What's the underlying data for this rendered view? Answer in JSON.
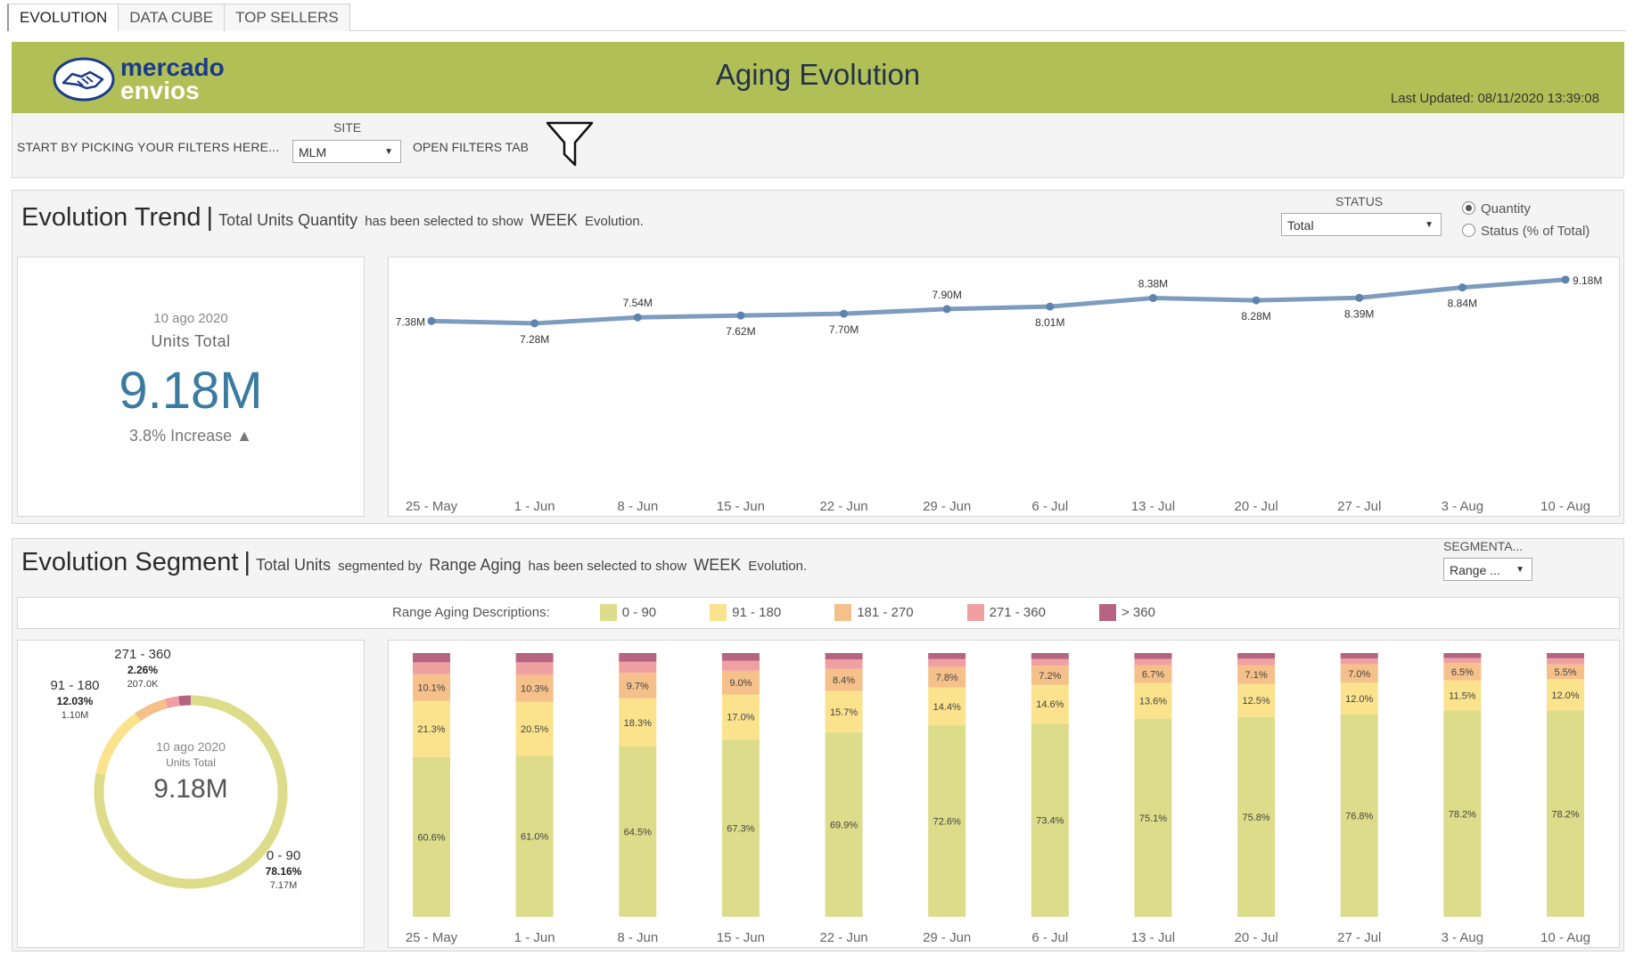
{
  "tabs": [
    {
      "label": "EVOLUTION",
      "active": true
    },
    {
      "label": "DATA CUBE",
      "active": false
    },
    {
      "label": "TOP SELLERS",
      "active": false
    }
  ],
  "header": {
    "logo_line1": "mercado",
    "logo_line2": "envios",
    "title": "Aging Evolution",
    "last_updated_label": "Last Updated:",
    "last_updated_value": "08/11/2020 13:39:08",
    "color": "#b1c056"
  },
  "filters": {
    "intro": "START BY PICKING YOUR FILTERS HERE...",
    "site_label": "SITE",
    "site_value": "MLM",
    "open_filters": "OPEN FILTERS TAB"
  },
  "trend": {
    "title": "Evolution Trend",
    "sep": "|",
    "sub_strong": "Total Units Quantity",
    "sub_mid": "has been selected to show",
    "sub_strong2": "WEEK",
    "sub_end": "Evolution.",
    "status_label": "STATUS",
    "status_value": "Total",
    "radio_quantity": "Quantity",
    "radio_status": "Status (% of Total)",
    "kpi": {
      "date": "10 ago 2020",
      "label": "Units Total",
      "value": "9.18M",
      "change": "3.8%  Increase ▲"
    }
  },
  "segment": {
    "title": "Evolution Segment",
    "sep": "|",
    "sub_strong": "Total Units",
    "sub_mid": "segmented by",
    "sub_strong2": "Range Aging",
    "sub_mid2": "has been selected to show",
    "sub_strong3": "WEEK",
    "sub_end": "Evolution.",
    "seg_label": "SEGMENTA...",
    "seg_value": "Range ...",
    "legend_title": "Range Aging Descriptions:",
    "donut": {
      "date": "10 ago 2020",
      "label": "Units Total",
      "value": "9.18M",
      "labels": [
        {
          "name": "271 - 360",
          "pct": "2.26%",
          "amt": "207.0K"
        },
        {
          "name": "91 - 180",
          "pct": "12.03%",
          "amt": "1.10M"
        },
        {
          "name": "0 - 90",
          "pct": "78.16%",
          "amt": "7.17M"
        }
      ]
    }
  },
  "colors": {
    "line": "#7d9cbf",
    "point": "#5e84ae",
    "r0_90": "#dcdc8a",
    "r91_180": "#fbe38e",
    "r181_270": "#f5c08a",
    "r271_360": "#f0a0a0",
    "r360": "#b56582"
  },
  "chart_data": [
    {
      "type": "line",
      "categories": [
        "25 - May",
        "1 - Jun",
        "8 - Jun",
        "15 - Jun",
        "22 - Jun",
        "29 - Jun",
        "6 - Jul",
        "13 - Jul",
        "20 - Jul",
        "27 - Jul",
        "3 - Aug",
        "10 - Aug"
      ],
      "series": [
        {
          "values": [
            7.38,
            7.28,
            7.54,
            7.62,
            7.7,
            7.9,
            8.01,
            8.38,
            8.28,
            8.39,
            8.84,
            9.18
          ]
        }
      ],
      "data_labels": [
        "7.38M",
        "7.28M",
        "7.54M",
        "7.62M",
        "7.70M",
        "7.90M",
        "8.01M",
        "8.38M",
        "8.28M",
        "8.39M",
        "8.84M",
        "9.18M"
      ],
      "label_pos": [
        "left",
        "below",
        "above",
        "below",
        "below",
        "above",
        "below",
        "above",
        "below",
        "below",
        "below",
        "right"
      ],
      "ylim": [
        0,
        9.6
      ],
      "grid": false
    },
    {
      "type": "bar",
      "stacked": true,
      "categories": [
        "25 - May",
        "1 - Jun",
        "8 - Jun",
        "15 - Jun",
        "22 - Jun",
        "29 - Jun",
        "6 - Jul",
        "13 - Jul",
        "20 - Jul",
        "27 - Jul",
        "3 - Aug",
        "10 - Aug"
      ],
      "series": [
        {
          "name": "0 - 90",
          "values": [
            60.6,
            61.0,
            64.5,
            67.3,
            69.9,
            72.6,
            73.4,
            75.1,
            75.8,
            76.8,
            78.2,
            78.2
          ]
        },
        {
          "name": "91 - 180",
          "values": [
            21.3,
            20.5,
            18.3,
            17.0,
            15.7,
            14.4,
            14.6,
            13.6,
            12.5,
            12.0,
            11.5,
            12.0
          ]
        },
        {
          "name": "181 - 270",
          "values": [
            10.1,
            10.3,
            9.7,
            9.0,
            8.4,
            7.8,
            7.2,
            6.7,
            7.1,
            7.0,
            6.5,
            5.5
          ]
        },
        {
          "name": "271 - 360",
          "values": [
            4.5,
            4.7,
            4.2,
            3.8,
            3.6,
            3.0,
            2.6,
            2.4,
            2.5,
            2.1,
            1.9,
            2.3
          ]
        },
        {
          "name": "> 360",
          "values": [
            3.5,
            3.5,
            3.3,
            2.9,
            2.4,
            2.2,
            2.2,
            2.2,
            2.1,
            2.1,
            1.9,
            2.0
          ]
        }
      ],
      "labeled_series": [
        0,
        1,
        2
      ],
      "ylim": [
        0,
        100
      ]
    },
    {
      "type": "pie",
      "donut": true,
      "categories": [
        "0 - 90",
        "91 - 180",
        "181 - 270",
        "271 - 360",
        "> 360"
      ],
      "values": [
        78.16,
        12.03,
        5.5,
        2.26,
        2.05
      ]
    }
  ]
}
